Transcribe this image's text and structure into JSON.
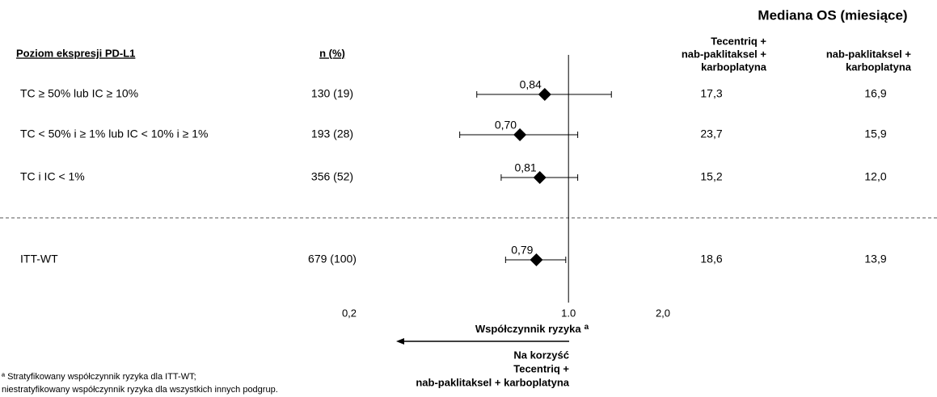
{
  "chart_data": {
    "type": "forest",
    "title": "Mediana OS (miesiące)",
    "row_header": "Poziom ekspresji PD-L1",
    "n_header": "n (%)",
    "os_headers": [
      [
        "Tecentriq +",
        "nab-paklitaksel +",
        "karboplatyna"
      ],
      [
        "nab-paklitaksel +",
        "karboplatyna"
      ]
    ],
    "categories": [
      "TC ≥ 50% lub IC ≥ 10%",
      "TC < 50% i ≥ 1% lub IC < 10% i ≥ 1%",
      "TC i IC < 1%",
      "ITT-WT"
    ],
    "n_labels": [
      "130 (19)",
      "193 (28)",
      "356 (52)",
      "679 (100)"
    ],
    "values": [
      0.84,
      0.7,
      0.81,
      0.79
    ],
    "value_labels": [
      "0,84",
      "0,70",
      "0,81",
      "0,79"
    ],
    "ci_low": [
      0.51,
      0.45,
      0.61,
      0.63
    ],
    "ci_high": [
      1.37,
      1.07,
      1.07,
      0.98
    ],
    "os_tecentriq": [
      "17,3",
      "23,7",
      "15,2",
      "18,6"
    ],
    "os_control": [
      "16,9",
      "15,9",
      "12,0",
      "13,9"
    ],
    "xlim": [
      0.2,
      2.0
    ],
    "xticks": [
      {
        "value": 0.2,
        "label": "0,2"
      },
      {
        "value": 1.0,
        "label": "1.0"
      },
      {
        "value": 2.0,
        "label": "2,0"
      }
    ],
    "log_x": true,
    "color": "#000000",
    "xlabel": "Współczynnik ryzyka",
    "xlabel_sup": "a",
    "favor": [
      "Na korzyść",
      "Tecentriq +",
      "nab-paklitaksel + karboplatyna"
    ],
    "footnote": [
      "ª Stratyfikowany współczynnik ryzyka dla ITT-WT;",
      "niestratyfikowany współczynnik ryzyka dla wszystkich innych podgrup."
    ]
  }
}
